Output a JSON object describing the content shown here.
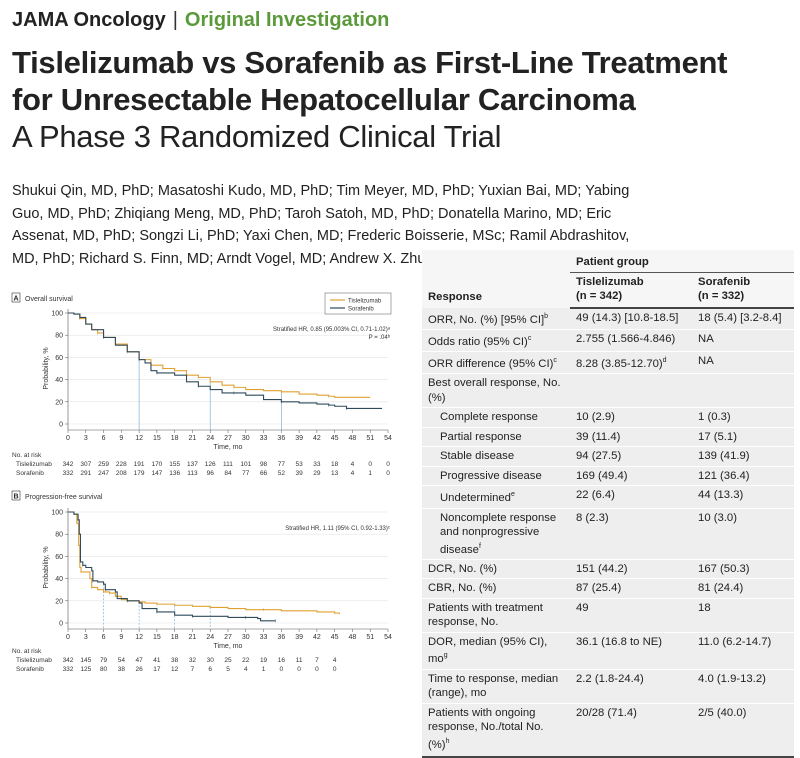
{
  "header": {
    "journal": "JAMA Oncology",
    "separator": "|",
    "section": "Original Investigation"
  },
  "title": {
    "line1": "Tislelizumab vs Sorafenib as First-Line Treatment",
    "line2": "for Unresectable Hepatocellular Carcinoma",
    "subtitle": "A Phase 3 Randomized Clinical Trial"
  },
  "authors": "Shukui Qin, MD, PhD; Masatoshi Kudo, MD, PhD; Tim Meyer, MD, PhD; Yuxian Bai, MD; Yabing Guo, MD, PhD; Zhiqiang Meng, MD, PhD; Taroh Satoh, MD, PhD; Donatella Marino, MD; Eric Assenat, MD, PhD; Songzi Li, PhD; Yaxi Chen, MD; Frederic Boisserie, MSc; Ramil Abdrashitov, MD, PhD; Richard S. Finn, MD; Arndt Vogel, MD; Andrew X. Zhu, MD, PhD",
  "colors": {
    "tislelizumab": "#e0a030",
    "sorafenib": "#2f4a5c",
    "median_line": "#7fb3d5",
    "section": "#5b9a3a"
  },
  "chart_data": [
    {
      "type": "line",
      "panel": "A",
      "title": "Overall survival",
      "xlabel": "Time, mo",
      "ylabel": "Probability, %",
      "xlim": [
        0,
        54
      ],
      "ylim": [
        0,
        100
      ],
      "xticks": [
        0,
        3,
        6,
        9,
        12,
        15,
        18,
        21,
        24,
        27,
        30,
        33,
        36,
        39,
        42,
        45,
        48,
        51,
        54
      ],
      "yticks": [
        0,
        20,
        40,
        60,
        80,
        100
      ],
      "grid": "horizontal",
      "legend": "top-right",
      "annotation": [
        "Stratified HR, 0.85 (95.003% CI, 0.71-1.02)ᵃ",
        "P = .04ᵇ"
      ],
      "median_markers": [
        12,
        24,
        36
      ],
      "series": [
        {
          "name": "Tislelizumab",
          "points": [
            [
              0,
              100
            ],
            [
              1,
              99
            ],
            [
              2,
              95
            ],
            [
              3,
              90
            ],
            [
              4,
              85
            ],
            [
              5,
              82
            ],
            [
              6,
              78
            ],
            [
              8,
              72
            ],
            [
              10,
              65
            ],
            [
              12,
              58
            ],
            [
              14,
              53
            ],
            [
              16,
              50
            ],
            [
              18,
              48
            ],
            [
              20,
              44
            ],
            [
              22,
              42
            ],
            [
              24,
              38
            ],
            [
              26,
              35
            ],
            [
              28,
              33
            ],
            [
              30,
              31
            ],
            [
              33,
              30
            ],
            [
              36,
              29
            ],
            [
              39,
              27
            ],
            [
              42,
              26
            ],
            [
              44,
              25
            ],
            [
              45,
              24
            ],
            [
              51,
              24
            ]
          ]
        },
        {
          "name": "Sorafenib",
          "points": [
            [
              0,
              100
            ],
            [
              1,
              99
            ],
            [
              2,
              96
            ],
            [
              3,
              90
            ],
            [
              4,
              85
            ],
            [
              6,
              78
            ],
            [
              8,
              71
            ],
            [
              10,
              65
            ],
            [
              12,
              58
            ],
            [
              13,
              55
            ],
            [
              14,
              48
            ],
            [
              15,
              46
            ],
            [
              18,
              44
            ],
            [
              20,
              38
            ],
            [
              22,
              34
            ],
            [
              24,
              31
            ],
            [
              26,
              28
            ],
            [
              28,
              28
            ],
            [
              30,
              26
            ],
            [
              33,
              22
            ],
            [
              36,
              20
            ],
            [
              39,
              19
            ],
            [
              42,
              18
            ],
            [
              44,
              17
            ],
            [
              45,
              16
            ],
            [
              46.5,
              16
            ],
            [
              47,
              14
            ],
            [
              53,
              14
            ]
          ]
        }
      ],
      "risk_table": {
        "label": "No. at risk",
        "times": [
          0,
          3,
          6,
          9,
          12,
          15,
          18,
          21,
          24,
          27,
          30,
          33,
          36,
          39,
          42,
          45,
          48,
          51,
          54
        ],
        "rows": [
          {
            "name": "Tislelizumab",
            "values": [
              342,
              307,
              259,
              228,
              191,
              170,
              155,
              137,
              126,
              111,
              101,
              98,
              77,
              53,
              33,
              18,
              4,
              0,
              0
            ]
          },
          {
            "name": "Sorafenib",
            "values": [
              332,
              291,
              247,
              208,
              179,
              147,
              136,
              113,
              96,
              84,
              77,
              66,
              52,
              39,
              29,
              13,
              4,
              1,
              0
            ]
          }
        ]
      }
    },
    {
      "type": "line",
      "panel": "B",
      "title": "Progression-free survival",
      "xlabel": "Time, mo",
      "ylabel": "Probability, %",
      "xlim": [
        0,
        54
      ],
      "ylim": [
        0,
        100
      ],
      "xticks": [
        0,
        3,
        6,
        9,
        12,
        15,
        18,
        21,
        24,
        27,
        30,
        33,
        36,
        39,
        42,
        45,
        48,
        51,
        54
      ],
      "yticks": [
        0,
        20,
        40,
        60,
        80,
        100
      ],
      "grid": "horizontal",
      "annotation": [
        "Stratified HR, 1.11 (95% CI, 0.92-1.33)ᶜ"
      ],
      "median_markers": [
        6,
        12,
        18,
        24
      ],
      "series": [
        {
          "name": "Tislelizumab",
          "points": [
            [
              0,
              100
            ],
            [
              1,
              98
            ],
            [
              1.5,
              90
            ],
            [
              1.8,
              70
            ],
            [
              2,
              50
            ],
            [
              2.2,
              46
            ],
            [
              3,
              46
            ],
            [
              3.7,
              40
            ],
            [
              4,
              32
            ],
            [
              5,
              30
            ],
            [
              6,
              28
            ],
            [
              7,
              27
            ],
            [
              8,
              24
            ],
            [
              9,
              21
            ],
            [
              10,
              20
            ],
            [
              12,
              19
            ],
            [
              13,
              18
            ],
            [
              15,
              17
            ],
            [
              18,
              16
            ],
            [
              21,
              15
            ],
            [
              24,
              14
            ],
            [
              27,
              13
            ],
            [
              30,
              12
            ],
            [
              33,
              12
            ],
            [
              36,
              11
            ],
            [
              42,
              10
            ],
            [
              45,
              9
            ],
            [
              45.8,
              8
            ]
          ]
        },
        {
          "name": "Sorafenib",
          "points": [
            [
              0,
              100
            ],
            [
              1,
              98
            ],
            [
              1.7,
              93
            ],
            [
              1.9,
              80
            ],
            [
              2.1,
              55
            ],
            [
              2.5,
              52
            ],
            [
              3,
              50
            ],
            [
              4,
              47
            ],
            [
              4.2,
              38
            ],
            [
              5,
              37
            ],
            [
              6,
              35
            ],
            [
              6.3,
              30
            ],
            [
              8,
              28
            ],
            [
              8.3,
              22
            ],
            [
              10,
              20
            ],
            [
              12,
              18
            ],
            [
              12.5,
              13
            ],
            [
              15,
              10
            ],
            [
              17,
              10
            ],
            [
              18,
              7
            ],
            [
              21,
              6
            ],
            [
              24,
              6
            ],
            [
              27,
              5
            ],
            [
              30,
              5
            ],
            [
              32,
              4
            ],
            [
              32.5,
              2
            ],
            [
              35,
              2
            ]
          ]
        }
      ],
      "risk_table": {
        "label": "No. at risk",
        "times": [
          0,
          3,
          6,
          9,
          12,
          15,
          18,
          21,
          24,
          27,
          30,
          33,
          36,
          39,
          42,
          45
        ],
        "rows": [
          {
            "name": "Tislelizumab",
            "values": [
              342,
              145,
              79,
              54,
              47,
              41,
              38,
              32,
              30,
              25,
              22,
              19,
              16,
              11,
              7,
              4
            ]
          },
          {
            "name": "Sorafenib",
            "values": [
              332,
              125,
              80,
              38,
              26,
              17,
              12,
              7,
              6,
              5,
              4,
              1,
              0,
              0,
              0,
              0
            ]
          }
        ]
      }
    }
  ],
  "table": {
    "col_response": "Response",
    "group_header": "Patient group",
    "col_tis": "Tislelizumab",
    "col_tis_n": "(n = 342)",
    "col_sor": "Sorafenib",
    "col_sor_n": "(n = 332)",
    "rows": [
      {
        "label": "ORR, No. (%) [95% CI]",
        "sup": "b",
        "tis": "49 (14.3) [10.8-18.5]",
        "sor": "18 (5.4) [3.2-8.4]"
      },
      {
        "label": "Odds ratio (95% CI)",
        "sup": "c",
        "tis": "2.755 (1.566-4.846)",
        "sor": "NA"
      },
      {
        "label": "ORR difference (95% CI)",
        "sup": "c",
        "tis": "8.28 (3.85-12.70)",
        "tis_sup": "d",
        "sor": "NA"
      },
      {
        "label": "Best overall response, No. (%)",
        "tis": "",
        "sor": ""
      },
      {
        "label": "Complete response",
        "indent": true,
        "tis": "10 (2.9)",
        "sor": "1 (0.3)"
      },
      {
        "label": "Partial response",
        "indent": true,
        "tis": "39 (11.4)",
        "sor": "17 (5.1)"
      },
      {
        "label": "Stable disease",
        "indent": true,
        "tis": "94 (27.5)",
        "sor": "139 (41.9)"
      },
      {
        "label": "Progressive disease",
        "indent": true,
        "tis": "169 (49.4)",
        "sor": "121 (36.4)"
      },
      {
        "label": "Undetermined",
        "sup": "e",
        "indent": true,
        "tis": "22 (6.4)",
        "sor": "44 (13.3)"
      },
      {
        "label": "Noncomplete response and nonprogressive disease",
        "sup": "f",
        "indent": true,
        "tis": "8 (2.3)",
        "sor": "10 (3.0)"
      },
      {
        "label": "DCR, No. (%)",
        "tis": "151 (44.2)",
        "sor": "167 (50.3)"
      },
      {
        "label": "CBR, No. (%)",
        "tis": "87 (25.4)",
        "sor": "81 (24.4)"
      },
      {
        "label": "Patients with treatment response, No.",
        "tis": "49",
        "sor": "18"
      },
      {
        "label": "DOR, median (95% CI), mo",
        "sup": "g",
        "tis": "36.1 (16.8 to NE)",
        "sor": "11.0 (6.2-14.7)"
      },
      {
        "label": "Time to response, median (range), mo",
        "tis": "2.2 (1.8-24.4)",
        "sor": "4.0 (1.9-13.2)"
      },
      {
        "label": "Patients with ongoing response, No./total No. (%)",
        "sup": "h",
        "tis": "20/28 (71.4)",
        "sor": "2/5 (40.0)"
      }
    ]
  }
}
